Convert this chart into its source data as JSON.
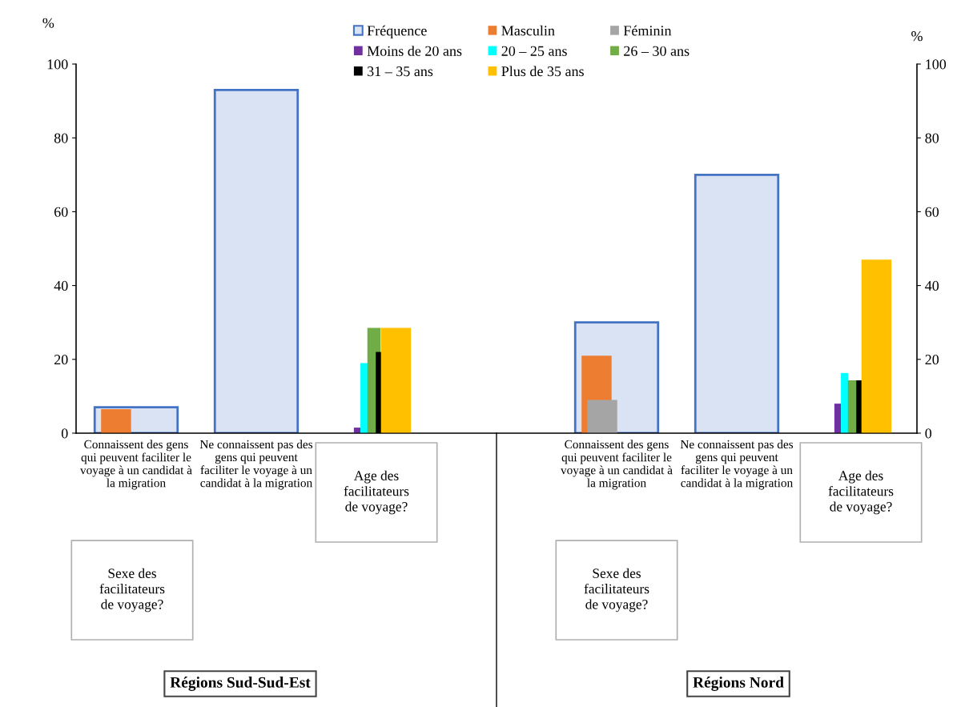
{
  "chart_data": {
    "type": "bar",
    "categories": [
      "Connaissent des gens\nqui peuvent faciliter le\nvoyage à un candidat à\nla migration",
      "Ne connaissent pas des\ngens qui peuvent\nfaciliter le voyage à un\ncandidat à la migration",
      null,
      null,
      "Connaissent des gens\nqui peuvent faciliter le\nvoyage à un candidat à\nla migration",
      "Ne connaissent pas des\ngens qui peuvent\nfaciliter le voyage à un\ncandidat à la migration",
      null
    ],
    "series": [
      {
        "name": "Fréquence",
        "color": "#dae3f3",
        "values": [
          7,
          93,
          null,
          null,
          30,
          70,
          null
        ]
      },
      {
        "name": "Masculin",
        "color": "#ed7d31",
        "values": [
          6.5,
          null,
          null,
          null,
          21,
          null,
          null
        ]
      },
      {
        "name": "Féminin",
        "color": "#a5a5a5",
        "values": [
          0,
          null,
          null,
          null,
          9,
          null,
          null
        ]
      },
      {
        "name": "Moins de 20 ans",
        "color": "#7030a0",
        "values": [
          null,
          null,
          1.5,
          null,
          null,
          null,
          8
        ]
      },
      {
        "name": "20 – 25 ans",
        "color": "#00ffff",
        "values": [
          null,
          null,
          19,
          null,
          null,
          null,
          16.3
        ]
      },
      {
        "name": "26 – 30 ans",
        "color": "#70ad47",
        "values": [
          null,
          null,
          28.5,
          null,
          null,
          null,
          14.3
        ]
      },
      {
        "name": "31 – 35 ans",
        "color": "#000000",
        "values": [
          null,
          null,
          22,
          null,
          null,
          null,
          14.3
        ]
      },
      {
        "name": "Plus de 35 ans",
        "color": "#ffc000",
        "values": [
          null,
          null,
          28.5,
          null,
          null,
          null,
          47
        ]
      }
    ],
    "ylim": [
      0,
      100
    ],
    "yticks": [
      0,
      20,
      40,
      60,
      80,
      100
    ],
    "y2lim": [
      0,
      100
    ],
    "y2ticks": [
      0,
      20,
      40,
      60,
      80,
      100
    ],
    "ylabel": "%",
    "y2label": "%",
    "legend": "top",
    "grid": false,
    "annotations": [
      "Age des\nfacilitateurs\nde voyage?",
      "Age des\nfacilitateurs\nde voyage?",
      "Sexe des\nfacilitateurs\nde voyage?",
      "Sexe des\nfacilitateurs\nde voyage?",
      "Régions Sud-Sud-Est",
      "Régions Nord"
    ]
  }
}
